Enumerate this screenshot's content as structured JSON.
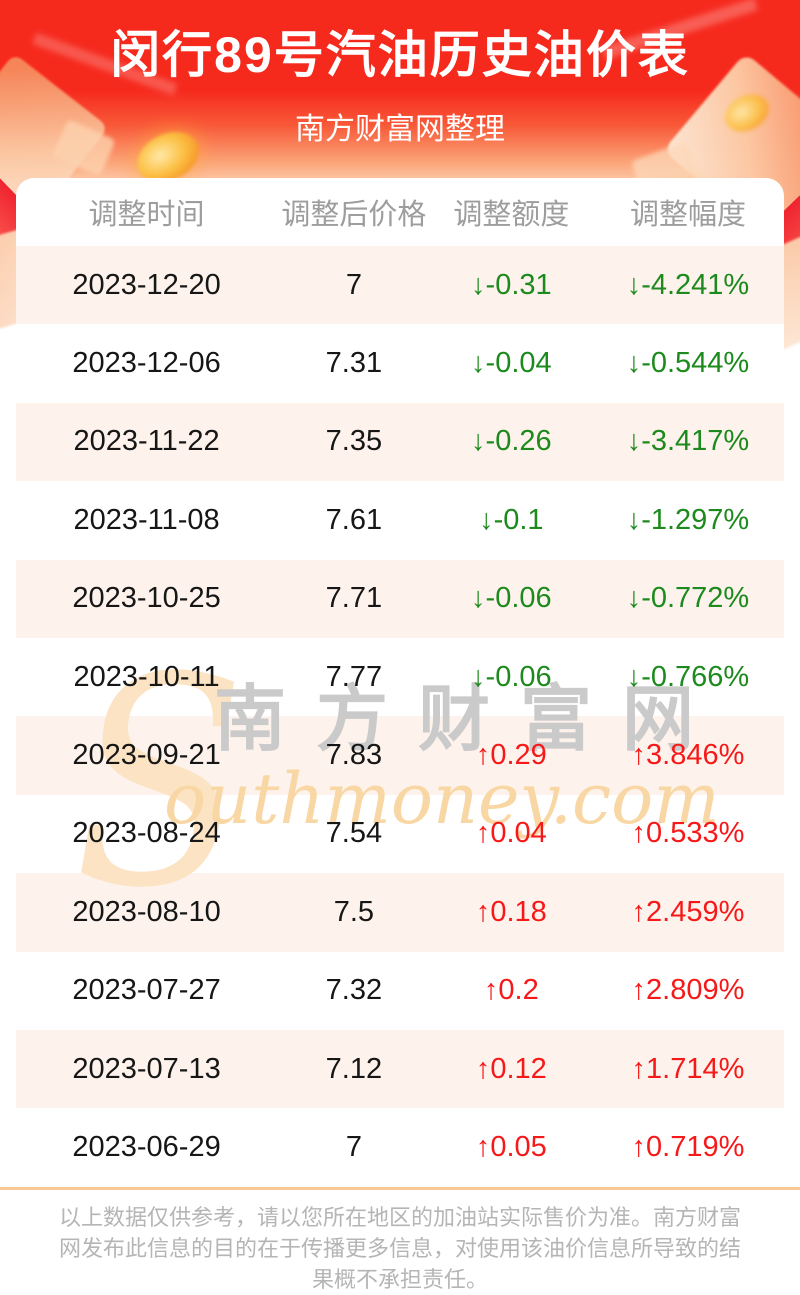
{
  "header": {
    "title": "闵行89号汽油历史油价表",
    "subtitle": "南方财富网整理"
  },
  "table": {
    "columns": [
      "调整时间",
      "调整后价格",
      "调整额度",
      "调整幅度"
    ],
    "rows": [
      {
        "date": "2023-12-20",
        "price": "7",
        "change": "↓-0.31",
        "rate": "↓-4.241%",
        "direction": "down"
      },
      {
        "date": "2023-12-06",
        "price": "7.31",
        "change": "↓-0.04",
        "rate": "↓-0.544%",
        "direction": "down"
      },
      {
        "date": "2023-11-22",
        "price": "7.35",
        "change": "↓-0.26",
        "rate": "↓-3.417%",
        "direction": "down"
      },
      {
        "date": "2023-11-08",
        "price": "7.61",
        "change": "↓-0.1",
        "rate": "↓-1.297%",
        "direction": "down"
      },
      {
        "date": "2023-10-25",
        "price": "7.71",
        "change": "↓-0.06",
        "rate": "↓-0.772%",
        "direction": "down"
      },
      {
        "date": "2023-10-11",
        "price": "7.77",
        "change": "↓-0.06",
        "rate": "↓-0.766%",
        "direction": "down"
      },
      {
        "date": "2023-09-21",
        "price": "7.83",
        "change": "↑0.29",
        "rate": "↑3.846%",
        "direction": "up"
      },
      {
        "date": "2023-08-24",
        "price": "7.54",
        "change": "↑0.04",
        "rate": "↑0.533%",
        "direction": "up"
      },
      {
        "date": "2023-08-10",
        "price": "7.5",
        "change": "↑0.18",
        "rate": "↑2.459%",
        "direction": "up"
      },
      {
        "date": "2023-07-27",
        "price": "7.32",
        "change": "↑0.2",
        "rate": "↑2.809%",
        "direction": "up"
      },
      {
        "date": "2023-07-13",
        "price": "7.12",
        "change": "↑0.12",
        "rate": "↑1.714%",
        "direction": "up"
      },
      {
        "date": "2023-06-29",
        "price": "7",
        "change": "↑0.05",
        "rate": "↑0.719%",
        "direction": "up"
      }
    ]
  },
  "watermark": {
    "big_glyph": "S",
    "cn": "南方财富网",
    "en": "outhmoney.com"
  },
  "footer": {
    "disclaimer": "以上数据仅供参考，请以您所在地区的加油站实际售价为准。南方财富网发布此信息的目的在于传播更多信息，对使用该油价信息所导致的结果概不承担责任。"
  },
  "colors": {
    "header_red": "#f6291d",
    "stripe_pink": "#fdf3ec",
    "down_green": "#1d8a1d",
    "up_red": "#f61919",
    "divider_orange": "#f7c994"
  }
}
